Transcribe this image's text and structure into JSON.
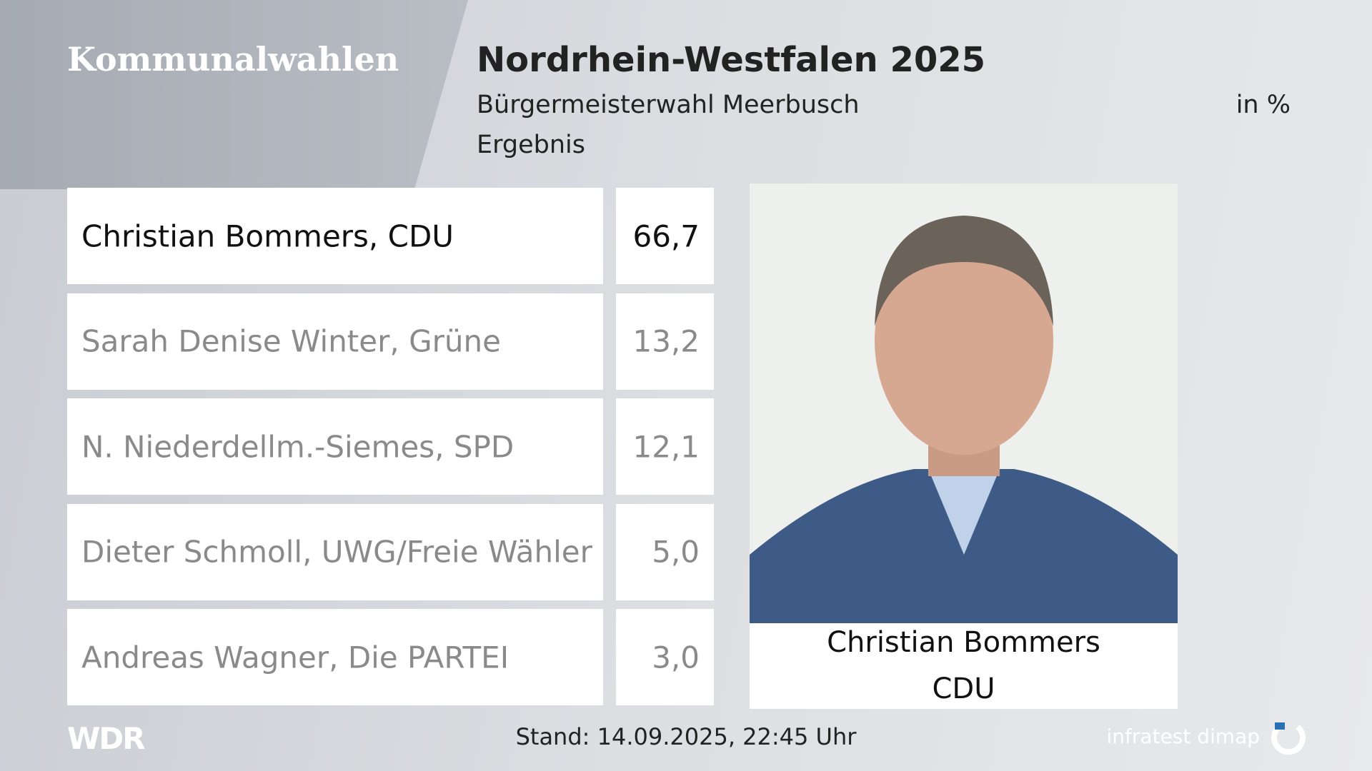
{
  "header": {
    "brand": "Kommunalwahlen",
    "title": "Nordrhein-Westfalen 2025",
    "subtitle": "Bürgermeisterwahl Meerbusch",
    "unit": "in %",
    "label": "Ergebnis"
  },
  "results": [
    {
      "name": "Christian Bommers, CDU",
      "value": "66,7"
    },
    {
      "name": "Sarah Denise Winter, Grüne",
      "value": "13,2"
    },
    {
      "name": "N. Niederdellm.-Siemes, SPD",
      "value": "12,1"
    },
    {
      "name": "Dieter Schmoll, UWG/Freie Wähler",
      "value": "5,0"
    },
    {
      "name": "Andreas Wagner, Die PARTEI",
      "value": "3,0"
    }
  ],
  "winner": {
    "name": "Christian Bommers",
    "party": "CDU"
  },
  "footer": {
    "logo": "WDR",
    "stand": "Stand: 14.09.2025, 22:45 Uhr",
    "source": "infratest dimap"
  }
}
